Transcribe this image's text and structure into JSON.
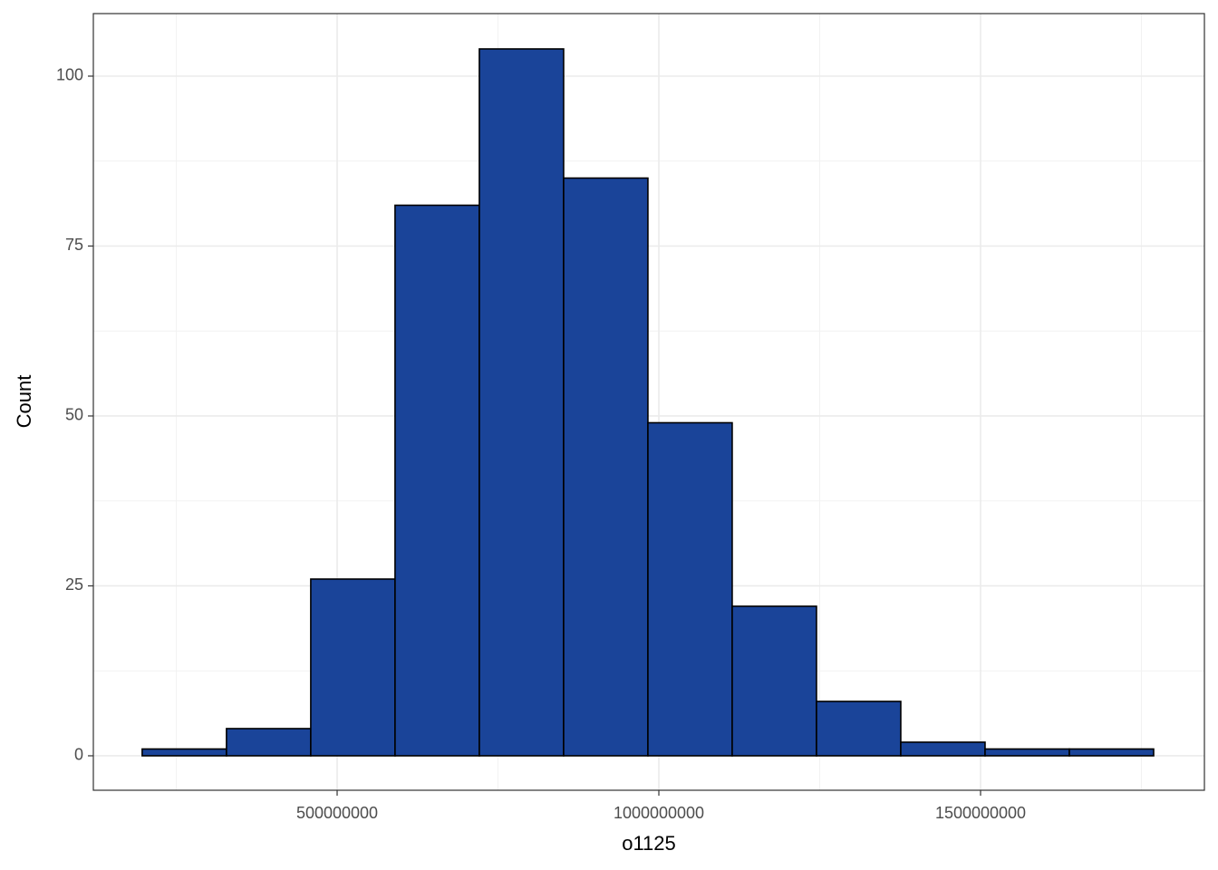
{
  "chart_data": {
    "type": "histogram",
    "x_label": "o1125",
    "y_label": "Count",
    "bins": [
      197000000,
      328000000,
      459000000,
      590000000,
      721000000,
      852000000,
      983000000,
      1114000000,
      1245000000,
      1376000000,
      1507000000,
      1638000000,
      1769000000
    ],
    "values": [
      1,
      4,
      26,
      81,
      104,
      85,
      49,
      22,
      8,
      2,
      1,
      1
    ],
    "color": "#1a4499",
    "edge_color": "#000000",
    "xlim": [
      121100000,
      1847900000
    ],
    "xticks": [
      500000000,
      1000000000,
      1500000000
    ],
    "minor_xticks": [
      250000000,
      750000000,
      1250000000,
      1750000000
    ],
    "ylim": [
      -5.07,
      109.2
    ],
    "yticks": [
      0,
      25,
      50,
      75,
      100
    ],
    "minor_yticks": [
      12.5,
      37.5,
      62.5,
      87.5
    ],
    "grid": true
  }
}
